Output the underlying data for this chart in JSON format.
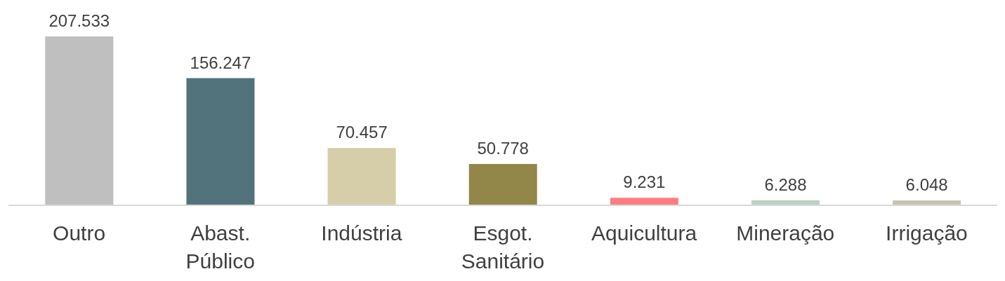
{
  "chart_data": {
    "type": "bar",
    "categories": [
      "Outro",
      "Abast. Público",
      "Indústria",
      "Esgot. Sanitário",
      "Aquicultura",
      "Mineração",
      "Irrigação"
    ],
    "values": [
      207533,
      156247,
      70457,
      50778,
      9231,
      6288,
      6048
    ],
    "colors": [
      "#bfbfbf",
      "#52737c",
      "#d6cea8",
      "#938649",
      "#ff7c80",
      "#bdd0c4",
      "#c8c3b0"
    ],
    "value_labels": [
      "207.533",
      "156.247",
      "70.457",
      "50.778",
      "9.231",
      "6.288",
      "6.048"
    ],
    "grid": false,
    "legend": false
  }
}
